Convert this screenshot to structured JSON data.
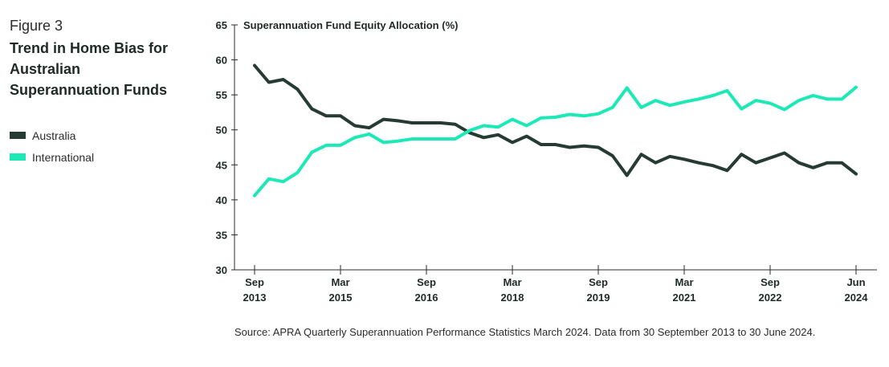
{
  "figure": {
    "label": "Figure 3",
    "title": "Trend in Home Bias for Australian Superannuation Funds"
  },
  "legend": [
    {
      "name": "Australia",
      "color": "#263b33"
    },
    {
      "name": "International",
      "color": "#1de9b6"
    }
  ],
  "source": "Source: APRA Quarterly Superannuation Performance Statistics March 2024. Data from 30 September 2013 to 30 June 2024.",
  "chart_data": {
    "type": "line",
    "title": "Superannuation Fund Equity Allocation (%)",
    "xlabel": "",
    "ylabel": "",
    "ylim": [
      30,
      65
    ],
    "yticks": [
      30,
      35,
      40,
      45,
      50,
      55,
      60,
      65
    ],
    "grid": false,
    "legend_position": "left",
    "xticks": [
      {
        "index": 0,
        "label": [
          "Sep",
          "2013"
        ]
      },
      {
        "index": 6,
        "label": [
          "Mar",
          "2015"
        ]
      },
      {
        "index": 12,
        "label": [
          "Sep",
          "2016"
        ]
      },
      {
        "index": 18,
        "label": [
          "Mar",
          "2018"
        ]
      },
      {
        "index": 24,
        "label": [
          "Sep",
          "2019"
        ]
      },
      {
        "index": 30,
        "label": [
          "Mar",
          "2021"
        ]
      },
      {
        "index": 36,
        "label": [
          "Sep",
          "2022"
        ]
      },
      {
        "index": 42,
        "label": [
          "Jun",
          "2024"
        ]
      }
    ],
    "x": [
      "Sep 2013",
      "Dec 2013",
      "Mar 2014",
      "Jun 2014",
      "Sep 2014",
      "Dec 2014",
      "Mar 2015",
      "Jun 2015",
      "Sep 2015",
      "Dec 2015",
      "Mar 2016",
      "Jun 2016",
      "Sep 2016",
      "Dec 2016",
      "Mar 2017",
      "Jun 2017",
      "Sep 2017",
      "Dec 2017",
      "Mar 2018",
      "Jun 2018",
      "Sep 2018",
      "Dec 2018",
      "Mar 2019",
      "Jun 2019",
      "Sep 2019",
      "Dec 2019",
      "Mar 2020",
      "Jun 2020",
      "Sep 2020",
      "Dec 2020",
      "Mar 2021",
      "Jun 2021",
      "Sep 2021",
      "Dec 2021",
      "Mar 2022",
      "Jun 2022",
      "Sep 2022",
      "Dec 2022",
      "Mar 2023",
      "Jun 2023",
      "Sep 2023",
      "Dec 2023",
      "Jun 2024"
    ],
    "series": [
      {
        "name": "Australia",
        "color": "#263b33",
        "values": [
          59.2,
          56.8,
          57.2,
          55.8,
          53.0,
          52.0,
          52.0,
          50.6,
          50.3,
          51.5,
          51.3,
          51.0,
          51.0,
          51.0,
          50.8,
          49.6,
          48.9,
          49.3,
          48.2,
          49.1,
          47.9,
          47.9,
          47.5,
          47.7,
          47.5,
          46.3,
          43.5,
          46.5,
          45.3,
          46.2,
          45.8,
          45.3,
          44.9,
          44.2,
          46.5,
          45.3,
          46.0,
          46.7,
          45.3,
          44.6,
          45.3,
          45.3,
          43.7
        ]
      },
      {
        "name": "International",
        "color": "#1de9b6",
        "values": [
          40.6,
          43.0,
          42.6,
          43.9,
          46.8,
          47.8,
          47.8,
          48.9,
          49.4,
          48.2,
          48.4,
          48.7,
          48.7,
          48.7,
          48.7,
          49.9,
          50.6,
          50.4,
          51.5,
          50.6,
          51.7,
          51.8,
          52.2,
          52.0,
          52.3,
          53.2,
          56.0,
          53.2,
          54.2,
          53.5,
          54.0,
          54.4,
          54.9,
          55.6,
          53.0,
          54.2,
          53.8,
          52.9,
          54.2,
          54.9,
          54.4,
          54.4,
          56.1
        ]
      }
    ]
  }
}
